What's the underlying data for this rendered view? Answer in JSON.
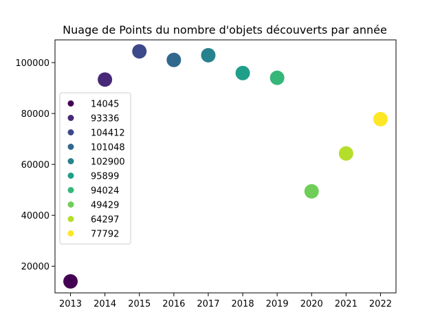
{
  "chart_data": {
    "type": "scatter",
    "title": "Nuage de Points du nombre d'objets découverts par année",
    "xlabel": "",
    "ylabel": "",
    "x": [
      2013,
      2014,
      2015,
      2016,
      2017,
      2018,
      2019,
      2020,
      2021,
      2022
    ],
    "y": [
      14045,
      93336,
      104412,
      101048,
      102900,
      95899,
      94024,
      49429,
      64297,
      77792
    ],
    "colors": [
      "#440154",
      "#482878",
      "#3e4989",
      "#31688e",
      "#26828e",
      "#1f9e89",
      "#35b779",
      "#6ece58",
      "#b5de2b",
      "#fde725"
    ],
    "xlim": [
      2012.55,
      2022.45
    ],
    "ylim": [
      9527,
      108930
    ],
    "xticks": [
      2013,
      2014,
      2015,
      2016,
      2017,
      2018,
      2019,
      2020,
      2021,
      2022
    ],
    "xtick_labels": [
      "2013",
      "2014",
      "2015",
      "2016",
      "2017",
      "2018",
      "2019",
      "2020",
      "2021",
      "2022"
    ],
    "yticks": [
      20000,
      40000,
      60000,
      80000,
      100000
    ],
    "ytick_labels": [
      "20000",
      "40000",
      "60000",
      "80000",
      "100000"
    ],
    "legend": {
      "placement": "center-left",
      "entries": [
        "14045",
        "93336",
        "104412",
        "101048",
        "102900",
        "95899",
        "94024",
        "49429",
        "64297",
        "77792"
      ]
    },
    "grid": false
  }
}
